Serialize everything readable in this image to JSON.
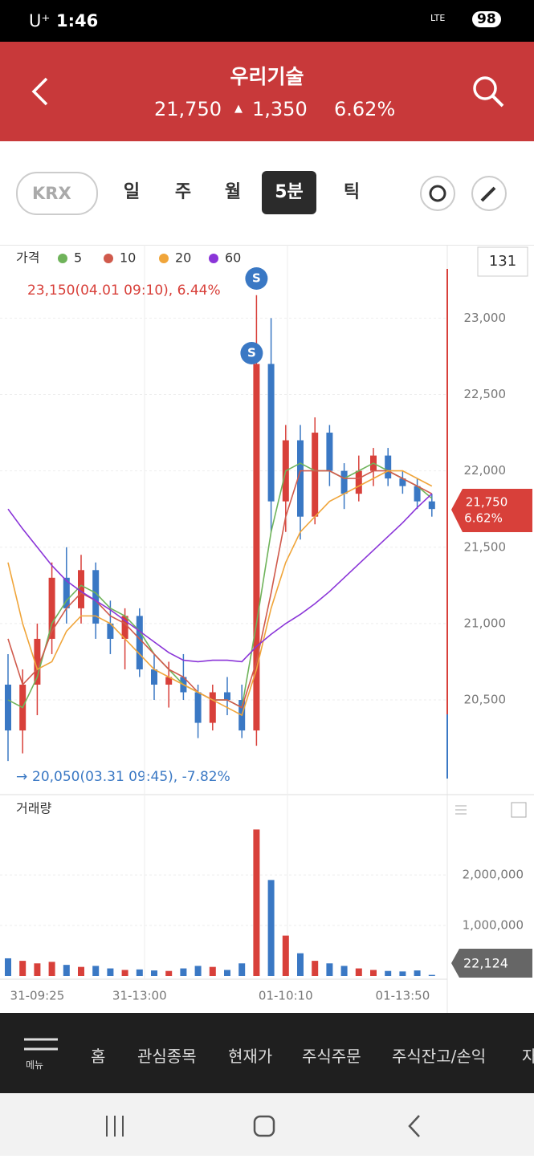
{
  "status": {
    "carrier": "U⁺",
    "time": "1:46",
    "network": "LTE",
    "battery": "98"
  },
  "header": {
    "title": "우리기술",
    "price": "21,750",
    "change_arrow": "▲",
    "change": "1,350",
    "rate": "6.62%"
  },
  "toolbar": {
    "exchange": "KRX",
    "tabs": [
      "일",
      "주",
      "월",
      "5분",
      "틱"
    ],
    "selected": "5분"
  },
  "chart_data": {
    "type": "candlestick",
    "price_label": "가격",
    "period_box": "131",
    "high_annotation": "23,150(04.01 09:10), 6.44%",
    "low_annotation": "20,050(03.31 09:45), -7.82%",
    "signals": [
      "S",
      "S"
    ],
    "current_price": "21,750",
    "current_rate": "6.62%",
    "up_color": "#d8403a",
    "down_color": "#3a78c4",
    "categories": [
      null,
      null,
      "31-09:25",
      null,
      null,
      null,
      null,
      null,
      null,
      "31-13:00",
      null,
      null,
      null,
      null,
      null,
      null,
      null,
      null,
      null,
      "01-10:10",
      null,
      null,
      null,
      null,
      null,
      null,
      null,
      "01-13:50",
      null,
      null
    ],
    "open": [
      20600,
      20300,
      20600,
      20900,
      21300,
      21100,
      21350,
      21000,
      20900,
      21050,
      20700,
      20600,
      20650,
      20550,
      20350,
      20550,
      20500,
      20300,
      22700,
      21800,
      22200,
      21700,
      22250,
      22000,
      21850,
      22000,
      22100,
      21950,
      21900,
      21800
    ],
    "high": [
      20800,
      20700,
      21000,
      21400,
      21500,
      21450,
      21400,
      21150,
      21100,
      21100,
      20800,
      20750,
      20800,
      20600,
      20600,
      20650,
      20600,
      23150,
      23000,
      22300,
      22300,
      22350,
      22300,
      22050,
      22100,
      22150,
      22150,
      22000,
      21950,
      21850
    ],
    "low": [
      20100,
      20150,
      20400,
      20800,
      21000,
      21000,
      20900,
      20800,
      20700,
      20650,
      20500,
      20450,
      20500,
      20250,
      20300,
      20400,
      20250,
      20200,
      21600,
      21600,
      21550,
      21650,
      21900,
      21750,
      21800,
      21900,
      21900,
      21850,
      21750,
      21700
    ],
    "close": [
      20300,
      20600,
      20900,
      21300,
      21100,
      21350,
      21000,
      20900,
      21050,
      20700,
      20600,
      20650,
      20550,
      20350,
      20550,
      20500,
      20300,
      22700,
      21800,
      22200,
      21700,
      22250,
      22000,
      21850,
      22000,
      22100,
      21950,
      21900,
      21800,
      21750
    ],
    "series": [
      {
        "name": "5",
        "color": "#6fb35a",
        "values": [
          20500,
          20450,
          20650,
          21000,
          21150,
          21250,
          21200,
          21100,
          21050,
          20950,
          20800,
          20700,
          20600,
          20550,
          20500,
          20500,
          20450,
          21000,
          21600,
          22000,
          22050,
          22000,
          22000,
          21950,
          22000,
          22050,
          22000,
          21950,
          21900,
          21820
        ]
      },
      {
        "name": "10",
        "color": "#d05a4c",
        "values": [
          20900,
          20600,
          20700,
          20950,
          21100,
          21200,
          21150,
          21050,
          21000,
          20900,
          20800,
          20700,
          20650,
          20550,
          20500,
          20500,
          20450,
          20750,
          21200,
          21700,
          22000,
          22000,
          22000,
          21950,
          21950,
          22000,
          22000,
          21950,
          21900,
          21850
        ]
      },
      {
        "name": "20",
        "color": "#f0a53a",
        "values": [
          21400,
          21000,
          20700,
          20750,
          20950,
          21050,
          21050,
          21000,
          20900,
          20800,
          20700,
          20650,
          20600,
          20550,
          20500,
          20450,
          20400,
          20700,
          21100,
          21400,
          21600,
          21700,
          21800,
          21850,
          21900,
          21950,
          22000,
          22000,
          21950,
          21900
        ]
      },
      {
        "name": "60",
        "color": "#8a35d8",
        "values": [
          21750,
          21620,
          21500,
          21380,
          21280,
          21210,
          21150,
          21090,
          21020,
          20950,
          20880,
          20810,
          20760,
          20750,
          20760,
          20760,
          20750,
          20850,
          20930,
          21000,
          21060,
          21130,
          21210,
          21300,
          21390,
          21480,
          21570,
          21660,
          21760,
          21850
        ]
      }
    ],
    "ylim": [
      19880,
      23480
    ],
    "yticks": [
      {
        "value": 20500,
        "label": "20,500"
      },
      {
        "value": 21000,
        "label": "21,000"
      },
      {
        "value": 21500,
        "label": "21,500"
      },
      {
        "value": 22000,
        "label": "22,000"
      },
      {
        "value": 22500,
        "label": "22,500"
      },
      {
        "value": 23000,
        "label": "23,000"
      }
    ],
    "volume_title": "거래량",
    "volume": [
      350000,
      300000,
      250000,
      280000,
      220000,
      180000,
      200000,
      150000,
      120000,
      130000,
      110000,
      100000,
      150000,
      200000,
      180000,
      120000,
      250000,
      2900000,
      1900000,
      800000,
      450000,
      300000,
      250000,
      200000,
      150000,
      120000,
      100000,
      90000,
      110000,
      22124
    ],
    "volume_value_label": "22,124",
    "vlim": [
      0,
      3590000
    ],
    "vticks": [
      {
        "value": 1000000,
        "label": "1,000,000"
      },
      {
        "value": 2000000,
        "label": "2,000,000"
      }
    ]
  },
  "bottom_nav": {
    "menu": "메뉴",
    "items": [
      "홈",
      "관심종목",
      "현재가",
      "주식주문",
      "주식잔고/손익",
      "자"
    ]
  }
}
